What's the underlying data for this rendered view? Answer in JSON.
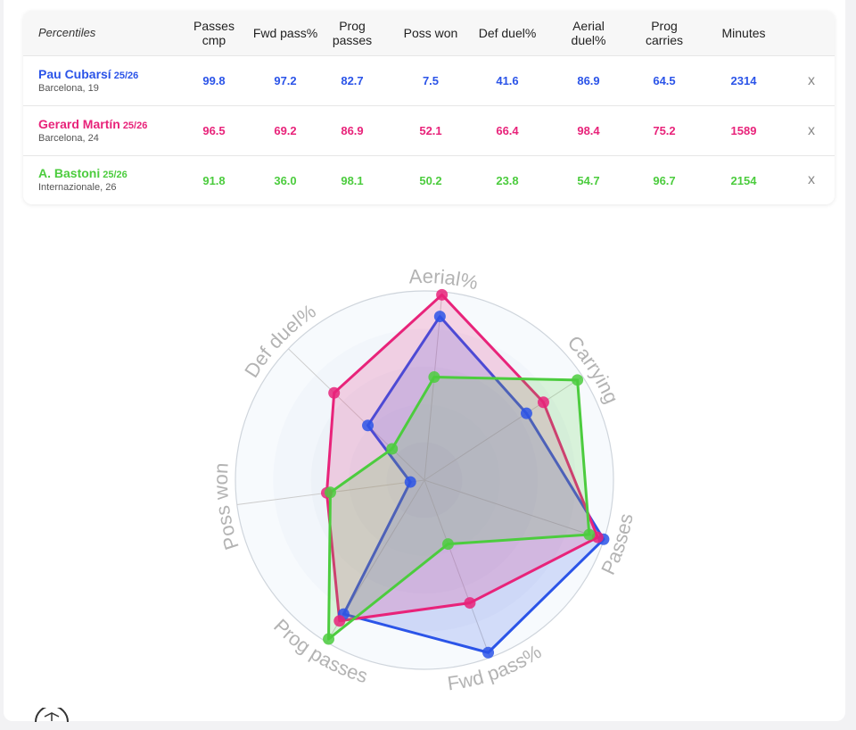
{
  "table": {
    "corner_label": "Percentiles",
    "columns": [
      {
        "line1": "Passes",
        "line2": "cmp"
      },
      {
        "line1": "Fwd pass%",
        "line2": ""
      },
      {
        "line1": "Prog",
        "line2": "passes"
      },
      {
        "line1": "Poss won",
        "line2": ""
      },
      {
        "line1": "Def duel%",
        "line2": ""
      },
      {
        "line1": "Aerial",
        "line2": "duel%"
      },
      {
        "line1": "Prog",
        "line2": "carries"
      },
      {
        "line1": "Minutes",
        "line2": ""
      }
    ],
    "players": [
      {
        "name": "Pau Cubarsí",
        "season": "25/26",
        "club": "Barcelona, 19",
        "color": "#2b54e8",
        "values": [
          "99.8",
          "97.2",
          "82.7",
          "7.5",
          "41.6",
          "86.9",
          "64.5",
          "2314"
        ],
        "remove": "x"
      },
      {
        "name": "Gerard Martín",
        "season": "25/26",
        "club": "Barcelona, 24",
        "color": "#e8237a",
        "values": [
          "96.5",
          "69.2",
          "86.9",
          "52.1",
          "66.4",
          "98.4",
          "75.2",
          "1589"
        ],
        "remove": "x"
      },
      {
        "name": "A. Bastoni",
        "season": "25/26",
        "club": "Internazionale, 26",
        "color": "#4ccc3e",
        "values": [
          "91.8",
          "36.0",
          "98.1",
          "50.2",
          "23.8",
          "54.7",
          "96.7",
          "2154"
        ],
        "remove": "x"
      }
    ]
  },
  "chart_data": {
    "type": "radar",
    "axes": [
      "Aerial%",
      "Carrying",
      "Passes",
      "Fwd pass%",
      "Prog passes",
      "Poss won",
      "Def duel%"
    ],
    "range": [
      0,
      100
    ],
    "grid": true,
    "series": [
      {
        "name": "Pau Cubarsí",
        "color": "#2b54e8",
        "values": [
          86.9,
          64.5,
          99.8,
          97.2,
          82.7,
          7.5,
          41.6
        ]
      },
      {
        "name": "Gerard Martín",
        "color": "#e8237a",
        "values": [
          98.4,
          75.2,
          96.5,
          69.2,
          86.9,
          52.1,
          66.4
        ]
      },
      {
        "name": "A. Bastoni",
        "color": "#4ccc3e",
        "values": [
          54.7,
          96.7,
          91.8,
          36.0,
          98.1,
          50.2,
          23.8
        ]
      }
    ]
  },
  "logo": {
    "icon": "football-icon"
  }
}
